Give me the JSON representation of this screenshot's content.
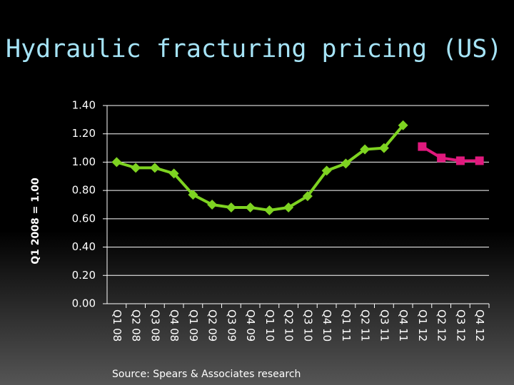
{
  "chart_data": {
    "type": "line",
    "title": "Hydraulic fracturing pricing (US)",
    "y_label": "Q1 2008 = 1.00",
    "source": "Source:  Spears & Associates research",
    "categories": [
      "Q1 08",
      "Q2 08",
      "Q3 08",
      "Q4 08",
      "Q1 09",
      "Q2 09",
      "Q3 09",
      "Q4 09",
      "Q1 10",
      "Q2 10",
      "Q3 10",
      "Q4 10",
      "Q1 11",
      "Q2 11",
      "Q3 11",
      "Q4 11",
      "Q1 12",
      "Q2 12",
      "Q3 12",
      "Q4 12"
    ],
    "series": [
      {
        "color": "#7ed321",
        "marker": "diamond",
        "values": [
          1.0,
          0.96,
          0.96,
          0.92,
          0.77,
          0.7,
          0.68,
          0.68,
          0.66,
          0.68,
          0.76,
          0.94,
          0.99,
          1.09,
          1.1,
          1.26,
          null,
          null,
          null,
          null
        ]
      },
      {
        "color": "#e0197d",
        "marker": "square",
        "values": [
          null,
          null,
          null,
          null,
          null,
          null,
          null,
          null,
          null,
          null,
          null,
          null,
          null,
          null,
          null,
          null,
          1.11,
          1.03,
          1.01,
          1.01
        ]
      }
    ],
    "ylim": [
      0,
      1.4
    ],
    "yticks": [
      {
        "value": 0,
        "label": "0.00"
      },
      {
        "value": 0.2,
        "label": "0.20"
      },
      {
        "value": 0.4,
        "label": "0.40"
      },
      {
        "value": 0.6,
        "label": "0.60"
      },
      {
        "value": 0.8,
        "label": "0.80"
      },
      {
        "value": 1.0,
        "label": "1.00"
      },
      {
        "value": 1.2,
        "label": "1.20"
      },
      {
        "value": 1.4,
        "label": "1.40"
      }
    ],
    "grid": true
  }
}
